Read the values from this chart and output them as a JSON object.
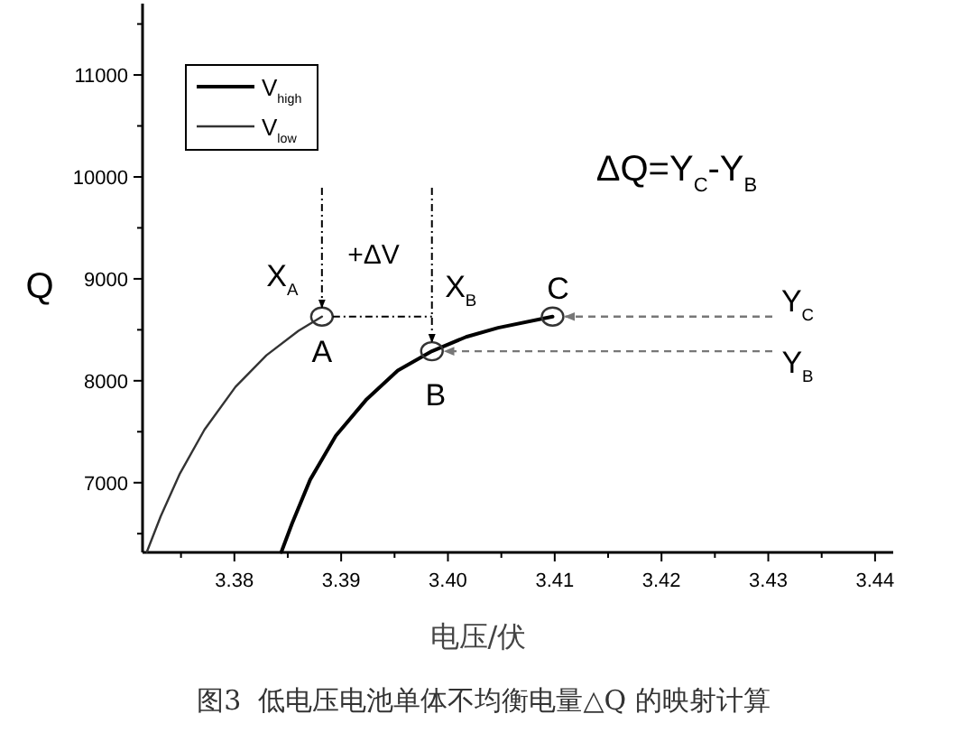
{
  "chart_data": {
    "type": "line",
    "ylabel": "Q",
    "xlabel": "电压/伏",
    "xlim": [
      3.3714,
      3.4417
    ],
    "ylim": [
      6316,
      11700
    ],
    "xticks": [
      {
        "value": 3.375,
        "label": null
      },
      3.38,
      {
        "value": 3.385,
        "label": null
      },
      3.39,
      {
        "value": 3.395,
        "label": null
      },
      {
        "value": 3.4,
        "label": "3.40"
      },
      {
        "value": 3.405,
        "label": null
      },
      3.41,
      {
        "value": 3.415,
        "label": null
      },
      3.42,
      {
        "value": 3.425,
        "label": null
      },
      3.43,
      {
        "value": 3.435,
        "label": null
      },
      3.44
    ],
    "yticks": [
      {
        "value": 6500,
        "label": null
      },
      7000,
      {
        "value": 7500,
        "label": null
      },
      8000,
      {
        "value": 8500,
        "label": null
      },
      9000,
      {
        "value": 9500,
        "label": null
      },
      10000,
      {
        "value": 10500,
        "label": null
      },
      11000,
      {
        "value": 11500,
        "label": null
      }
    ],
    "legend": "top left",
    "grid": false,
    "marker": "none",
    "line_style": "solid",
    "series": [
      {
        "name": "V$_{high}$",
        "color": "#000000",
        "x": [
          3.3844,
          3.3854,
          3.3871,
          3.3895,
          3.3924,
          3.3953,
          3.3985,
          3.4017,
          3.4047,
          3.4098
        ],
        "values": [
          6320,
          6600,
          7030,
          7460,
          7820,
          8100,
          8290,
          8430,
          8520,
          8630
        ]
      },
      {
        "name": "V$_{low}$",
        "color": "#333333",
        "x": [
          3.3718,
          3.3731,
          3.3749,
          3.3772,
          3.3801,
          3.383,
          3.386,
          3.3882
        ],
        "values": [
          6320,
          6670,
          7090,
          7520,
          7940,
          8250,
          8490,
          8630
        ]
      }
    ],
    "annotations": [
      {
        "text": "A",
        "x": 3.3882,
        "y": 8630
      },
      {
        "text": "B",
        "x": 3.3985,
        "y": 8290
      },
      {
        "text": "C",
        "x": 3.4098,
        "y": 8630
      },
      {
        "text": "X$_{A}$",
        "x": 3.3882,
        "y": 8630
      },
      {
        "text": "X$_{B}$",
        "x": 3.3985,
        "y": 8290
      },
      {
        "text": "Y$_{C}$",
        "x": 3.4098,
        "y": 8630
      },
      {
        "text": "Y$_{B}$",
        "x": 3.3985,
        "y": 8290
      },
      "+ΔV",
      "ΔQ=Y$_{C}$-Y$_{B}$",
      "图3  低电压电池单体不均衡电量△Q 的映射计算"
    ]
  }
}
